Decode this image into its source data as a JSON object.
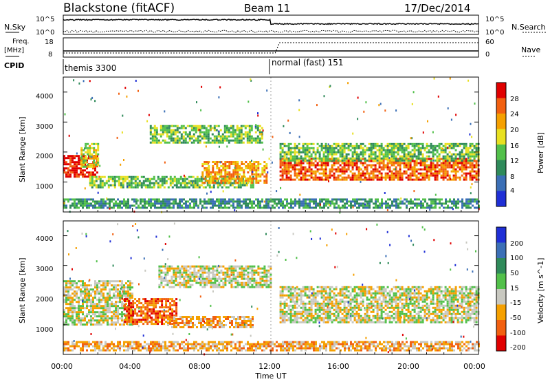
{
  "header": {
    "station": "Blackstone (fitACF)",
    "beam": "Beam 11",
    "date": "17/Dec/2014"
  },
  "top_panels": {
    "nsky_label": "N.Sky",
    "nsearch_label": "N.Search",
    "nsky_ticks": [
      "10^5",
      "10^0"
    ],
    "nsearch_ticks": [
      "10^5",
      "10^0"
    ],
    "freq_label_line1": "Freq.",
    "freq_label_line2": "[MHz]",
    "freq_ticks": [
      "18",
      "8"
    ],
    "nave_label": "Nave",
    "nave_ticks": [
      "60",
      "0"
    ],
    "cpid_label": "CPID",
    "cpid_segments": [
      {
        "label": "themis 3300",
        "start_hour": 0
      },
      {
        "label": "normal (fast) 151",
        "start_hour": 12
      }
    ]
  },
  "chart_data": [
    {
      "type": "heatmap",
      "name": "power",
      "ylabel": "Slant Range [km]",
      "y_ticks": [
        "1000",
        "2000",
        "3000",
        "4000"
      ],
      "ylim": [
        0,
        4500
      ],
      "xlim": [
        0,
        24
      ],
      "colorbar_label": "Power [dB]",
      "colorbar_ticks": [
        "4",
        "8",
        "12",
        "16",
        "20",
        "24",
        "28"
      ],
      "colorbar_colors": [
        "#1f2fd6",
        "#3b6fb6",
        "#2f8a5a",
        "#52c04a",
        "#e8e020",
        "#f5a000",
        "#f26010",
        "#e00000"
      ],
      "bands": [
        {
          "x0": 0.0,
          "x1": 2.0,
          "y0": 1150,
          "y1": 1900,
          "level": 7
        },
        {
          "x0": 1.0,
          "x1": 2.0,
          "y0": 1500,
          "y1": 2300,
          "level": 4
        },
        {
          "x0": 1.5,
          "x1": 11.0,
          "y0": 800,
          "y1": 1200,
          "level": 3
        },
        {
          "x0": 5.0,
          "x1": 11.5,
          "y0": 2300,
          "y1": 2900,
          "level": 3
        },
        {
          "x0": 8.0,
          "x1": 11.8,
          "y0": 1000,
          "y1": 1700,
          "level": 5
        },
        {
          "x0": 12.5,
          "x1": 24.0,
          "y0": 1100,
          "y1": 1800,
          "level": 6
        },
        {
          "x0": 12.5,
          "x1": 24.0,
          "y0": 1700,
          "y1": 2300,
          "level": 3
        },
        {
          "x0": 0.0,
          "x1": 24.0,
          "y0": 150,
          "y1": 450,
          "level": 2
        }
      ]
    },
    {
      "type": "heatmap",
      "name": "velocity",
      "ylabel": "Slant Range [km]",
      "y_ticks": [
        "1000",
        "2000",
        "3000",
        "4000"
      ],
      "ylim": [
        0,
        4500
      ],
      "xlim": [
        0,
        24
      ],
      "x_ticks": [
        "00:00",
        "04:00",
        "08:00",
        "12:00",
        "16:00",
        "20:00",
        "00:00"
      ],
      "xlabel": "Time UT",
      "colorbar_label": "Velocity [m s^-1]",
      "colorbar_ticks": [
        "200",
        "100",
        "50",
        "15",
        "-15",
        "-50",
        "-100",
        "-200"
      ],
      "colorbar_colors": [
        "#1f2fd6",
        "#3b6fb6",
        "#2f8a5a",
        "#52c04a",
        "#c8c8c0",
        "#f5a000",
        "#f26010",
        "#e00000"
      ],
      "bands": [
        {
          "x0": 0.0,
          "x1": 4.0,
          "y0": 1000,
          "y1": 2500,
          "level": 4
        },
        {
          "x0": 3.5,
          "x1": 6.5,
          "y0": 1000,
          "y1": 1900,
          "level": 6
        },
        {
          "x0": 6.0,
          "x1": 11.0,
          "y0": 900,
          "y1": 1300,
          "level": 5
        },
        {
          "x0": 5.5,
          "x1": 12.0,
          "y0": 2300,
          "y1": 3000,
          "level": 4
        },
        {
          "x0": 12.5,
          "x1": 24.0,
          "y0": 1100,
          "y1": 2300,
          "level": 4
        },
        {
          "x0": 0.0,
          "x1": 24.0,
          "y0": 150,
          "y1": 450,
          "level": 5
        }
      ]
    }
  ]
}
